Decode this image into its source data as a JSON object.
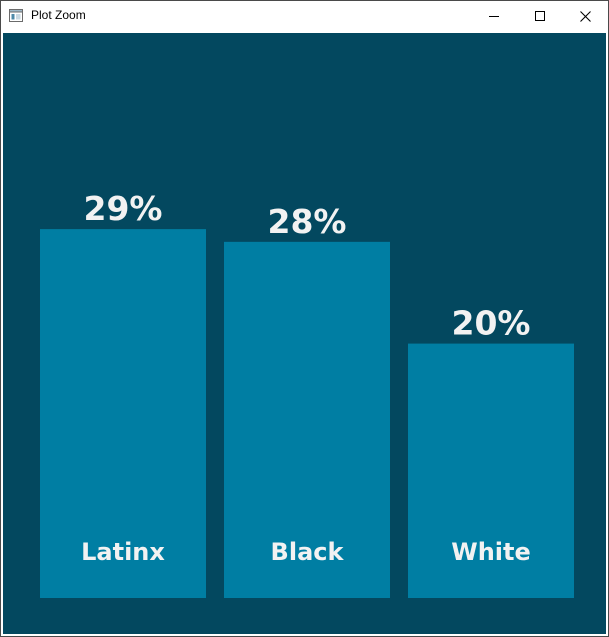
{
  "window": {
    "title": "Plot Zoom",
    "buttons": {
      "minimize_icon": "minimize-icon",
      "maximize_icon": "maximize-icon",
      "close_icon": "close-icon"
    }
  },
  "colors": {
    "background": "#03485f",
    "bar": "#007ea3",
    "text": "#f2f2f2"
  },
  "chart_data": {
    "type": "bar",
    "categories": [
      "Latinx",
      "Black",
      "White"
    ],
    "values": [
      29,
      28,
      20
    ],
    "value_labels": [
      "29%",
      "28%",
      "20%"
    ],
    "title": "",
    "xlabel": "",
    "ylabel": "",
    "ylim": [
      0,
      50
    ],
    "grid": false,
    "legend": "none"
  }
}
